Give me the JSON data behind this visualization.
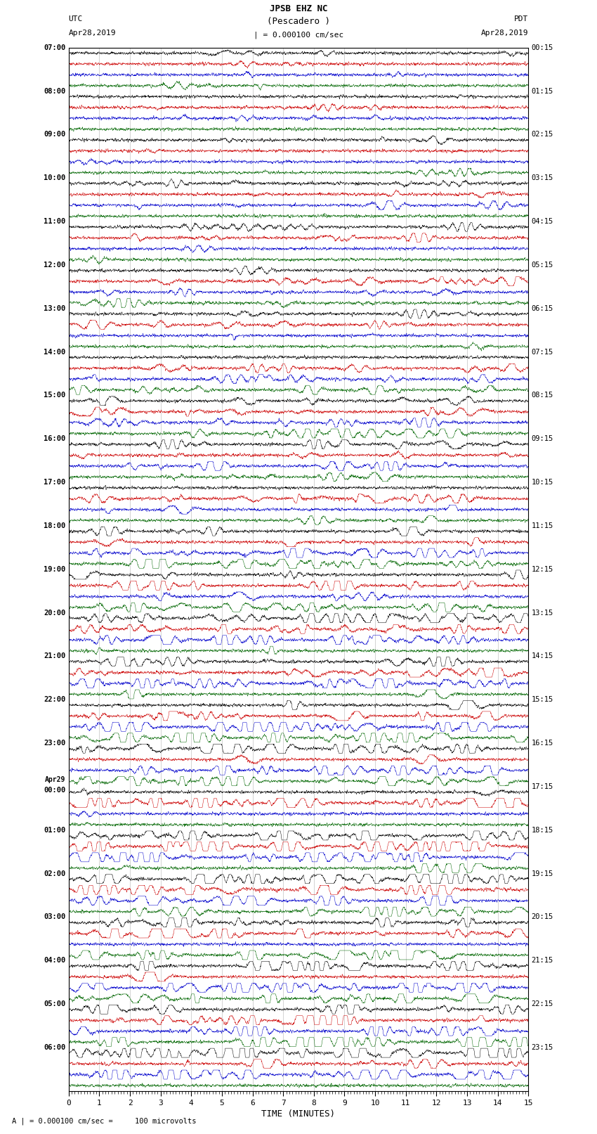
{
  "title_line1": "JPSB EHZ NC",
  "title_line2": "(Pescadero )",
  "title_line3": "| = 0.000100 cm/sec",
  "utc_label": "UTC",
  "utc_date": "Apr28,2019",
  "pdt_label": "PDT",
  "pdt_date": "Apr28,2019",
  "xlabel": "TIME (MINUTES)",
  "footer": "A | = 0.000100 cm/sec =     100 microvolts",
  "xlim": [
    0,
    15
  ],
  "xticks": [
    0,
    1,
    2,
    3,
    4,
    5,
    6,
    7,
    8,
    9,
    10,
    11,
    12,
    13,
    14,
    15
  ],
  "bg_color": "white",
  "trace_colors": [
    "#000000",
    "#cc0000",
    "#0000cc",
    "#006600"
  ],
  "num_rows": 24,
  "traces_per_row": 4,
  "left_times_utc": [
    "07:00",
    "08:00",
    "09:00",
    "10:00",
    "11:00",
    "12:00",
    "13:00",
    "14:00",
    "15:00",
    "16:00",
    "17:00",
    "18:00",
    "19:00",
    "20:00",
    "21:00",
    "22:00",
    "23:00",
    "Apr29\n00:00",
    "01:00",
    "02:00",
    "03:00",
    "04:00",
    "05:00",
    "06:00"
  ],
  "right_times_pdt": [
    "00:15",
    "01:15",
    "02:15",
    "03:15",
    "04:15",
    "05:15",
    "06:15",
    "07:15",
    "08:15",
    "09:15",
    "10:15",
    "11:15",
    "12:15",
    "13:15",
    "14:15",
    "15:15",
    "16:15",
    "17:15",
    "18:15",
    "19:15",
    "20:15",
    "21:15",
    "22:15",
    "23:15"
  ]
}
